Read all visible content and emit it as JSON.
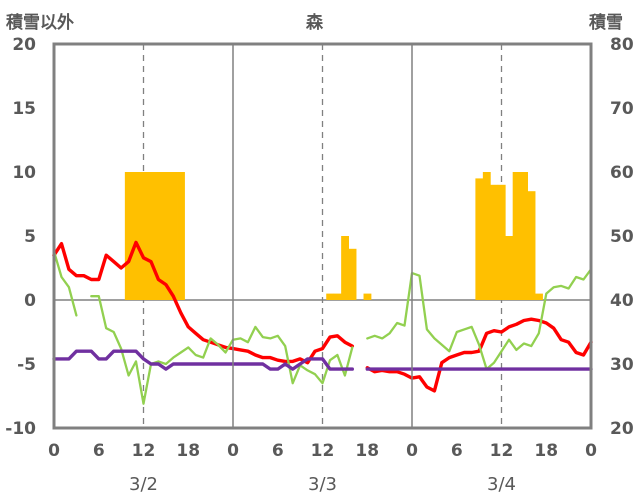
{
  "chart_data": {
    "type": "bar+line",
    "title": "森",
    "left_axis_label": "積雪以外",
    "right_axis_label": "積雪",
    "left_ylim": [
      -10,
      20
    ],
    "left_ticks": [
      "-10",
      "-5",
      "0",
      "5",
      "10",
      "15",
      "20"
    ],
    "right_ylim": [
      20,
      80
    ],
    "right_ticks": [
      "20",
      "30",
      "40",
      "50",
      "60",
      "70",
      "80"
    ],
    "x_range_hours": [
      0,
      72
    ],
    "x_ticks": [
      "0",
      "6",
      "12",
      "18",
      "0",
      "6",
      "12",
      "18",
      "0",
      "6",
      "12",
      "18",
      "0"
    ],
    "day_labels": [
      "3/2",
      "3/3",
      "3/4"
    ],
    "colors": {
      "bars": "#FFC000",
      "red": "#FF0000",
      "green": "#92D050",
      "purple": "#7030A0",
      "frame": "#808080",
      "text": "#595959"
    },
    "bars": [
      {
        "h": 10,
        "v": 60
      },
      {
        "h": 11,
        "v": 60
      },
      {
        "h": 12,
        "v": 60
      },
      {
        "h": 13,
        "v": 60
      },
      {
        "h": 14,
        "v": 60
      },
      {
        "h": 15,
        "v": 60
      },
      {
        "h": 16,
        "v": 60
      },
      {
        "h": 17,
        "v": 60
      },
      {
        "h": 37,
        "v": 41
      },
      {
        "h": 38,
        "v": 41
      },
      {
        "h": 39,
        "v": 50
      },
      {
        "h": 40,
        "v": 48
      },
      {
        "h": 42,
        "v": 41
      },
      {
        "h": 57,
        "v": 59
      },
      {
        "h": 58,
        "v": 60
      },
      {
        "h": 59,
        "v": 58
      },
      {
        "h": 60,
        "v": 58
      },
      {
        "h": 61,
        "v": 50
      },
      {
        "h": 62,
        "v": 60
      },
      {
        "h": 63,
        "v": 60
      },
      {
        "h": 64,
        "v": 57
      },
      {
        "h": 65,
        "v": 41
      }
    ],
    "series": [
      {
        "name": "red",
        "color": "#FF0000",
        "width": 3.4,
        "segments": [
          [
            [
              0,
              3.5
            ],
            [
              1,
              4.4
            ],
            [
              2,
              2.4
            ],
            [
              3,
              1.9
            ],
            [
              4,
              1.9
            ],
            [
              5,
              1.6
            ],
            [
              6,
              1.6
            ],
            [
              7,
              3.5
            ],
            [
              8,
              3.0
            ],
            [
              9,
              2.5
            ],
            [
              10,
              3.0
            ],
            [
              11,
              4.5
            ],
            [
              12,
              3.3
            ],
            [
              13,
              3.0
            ],
            [
              14,
              1.6
            ],
            [
              15,
              1.2
            ],
            [
              16,
              0.3
            ],
            [
              17,
              -1.0
            ],
            [
              18,
              -2.1
            ],
            [
              19,
              -2.6
            ],
            [
              20,
              -3.1
            ],
            [
              21,
              -3.3
            ],
            [
              22,
              -3.5
            ],
            [
              23,
              -3.7
            ],
            [
              24,
              -3.8
            ],
            [
              25,
              -3.9
            ],
            [
              26,
              -4.0
            ],
            [
              27,
              -4.3
            ],
            [
              28,
              -4.5
            ],
            [
              29,
              -4.5
            ],
            [
              30,
              -4.7
            ],
            [
              31,
              -4.8
            ],
            [
              32,
              -4.8
            ],
            [
              33,
              -4.6
            ],
            [
              34,
              -4.9
            ],
            [
              35,
              -4.0
            ],
            [
              36,
              -3.8
            ],
            [
              37,
              -2.9
            ],
            [
              38,
              -2.8
            ],
            [
              39,
              -3.3
            ],
            [
              40,
              -3.6
            ]
          ],
          [
            [
              42,
              -5.3
            ],
            [
              43,
              -5.6
            ],
            [
              44,
              -5.5
            ],
            [
              45,
              -5.6
            ],
            [
              46,
              -5.6
            ],
            [
              47,
              -5.8
            ],
            [
              48,
              -6.1
            ],
            [
              49,
              -6.0
            ],
            [
              50,
              -6.8
            ],
            [
              51,
              -7.1
            ],
            [
              52,
              -4.9
            ],
            [
              53,
              -4.5
            ],
            [
              54,
              -4.3
            ],
            [
              55,
              -4.1
            ],
            [
              56,
              -4.1
            ],
            [
              57,
              -4.0
            ],
            [
              58,
              -2.6
            ],
            [
              59,
              -2.4
            ],
            [
              60,
              -2.5
            ],
            [
              61,
              -2.1
            ],
            [
              62,
              -1.9
            ],
            [
              63,
              -1.6
            ],
            [
              64,
              -1.5
            ],
            [
              65,
              -1.6
            ],
            [
              66,
              -1.8
            ],
            [
              67,
              -2.2
            ],
            [
              68,
              -3.1
            ],
            [
              69,
              -3.3
            ],
            [
              70,
              -4.1
            ],
            [
              71,
              -4.3
            ],
            [
              72,
              -3.3
            ]
          ]
        ]
      },
      {
        "name": "green",
        "color": "#92D050",
        "width": 2.3,
        "segments": [
          [
            [
              0,
              3.8
            ],
            [
              1,
              1.8
            ],
            [
              2,
              1.0
            ],
            [
              3,
              -1.2
            ]
          ],
          [
            [
              5,
              0.3
            ],
            [
              6,
              0.3
            ],
            [
              7,
              -2.2
            ],
            [
              8,
              -2.5
            ],
            [
              9,
              -3.8
            ],
            [
              10,
              -5.9
            ],
            [
              11,
              -4.8
            ],
            [
              12,
              -8.1
            ],
            [
              13,
              -5.0
            ],
            [
              14,
              -4.8
            ],
            [
              15,
              -5.0
            ],
            [
              16,
              -4.5
            ],
            [
              17,
              -4.1
            ],
            [
              18,
              -3.7
            ],
            [
              19,
              -4.3
            ],
            [
              20,
              -4.5
            ],
            [
              21,
              -3.0
            ],
            [
              22,
              -3.5
            ],
            [
              23,
              -4.1
            ],
            [
              24,
              -3.1
            ],
            [
              25,
              -3.0
            ],
            [
              26,
              -3.3
            ],
            [
              27,
              -2.1
            ],
            [
              28,
              -2.9
            ],
            [
              29,
              -3.0
            ],
            [
              30,
              -2.8
            ],
            [
              31,
              -3.6
            ],
            [
              32,
              -6.5
            ],
            [
              33,
              -5.1
            ],
            [
              34,
              -5.5
            ],
            [
              35,
              -5.8
            ],
            [
              36,
              -6.5
            ],
            [
              37,
              -4.7
            ],
            [
              38,
              -4.3
            ],
            [
              39,
              -5.9
            ],
            [
              40,
              -3.7
            ]
          ],
          [
            [
              42,
              -3.0
            ],
            [
              43,
              -2.8
            ],
            [
              44,
              -3.0
            ],
            [
              45,
              -2.6
            ],
            [
              46,
              -1.8
            ],
            [
              47,
              -2.0
            ],
            [
              48,
              2.1
            ],
            [
              49,
              1.9
            ],
            [
              50,
              -2.3
            ],
            [
              51,
              -3.0
            ],
            [
              52,
              -3.5
            ],
            [
              53,
              -4.0
            ],
            [
              54,
              -2.5
            ],
            [
              55,
              -2.3
            ],
            [
              56,
              -2.1
            ],
            [
              57,
              -3.5
            ],
            [
              58,
              -5.4
            ],
            [
              59,
              -4.9
            ],
            [
              60,
              -4.0
            ],
            [
              61,
              -3.1
            ],
            [
              62,
              -3.9
            ],
            [
              63,
              -3.4
            ],
            [
              64,
              -3.6
            ],
            [
              65,
              -2.6
            ],
            [
              66,
              0.5
            ],
            [
              67,
              1.0
            ],
            [
              68,
              1.1
            ],
            [
              69,
              0.9
            ],
            [
              70,
              1.8
            ],
            [
              71,
              1.6
            ],
            [
              72,
              2.4
            ]
          ]
        ]
      },
      {
        "name": "purple",
        "color": "#7030A0",
        "width": 3.4,
        "segments": [
          [
            [
              0,
              -4.6
            ],
            [
              1,
              -4.6
            ],
            [
              2,
              -4.6
            ],
            [
              3,
              -4.0
            ],
            [
              4,
              -4.0
            ],
            [
              5,
              -4.0
            ],
            [
              6,
              -4.6
            ],
            [
              7,
              -4.6
            ],
            [
              8,
              -4.0
            ],
            [
              9,
              -4.0
            ],
            [
              10,
              -4.0
            ],
            [
              11,
              -4.0
            ],
            [
              12,
              -4.6
            ],
            [
              13,
              -5.0
            ],
            [
              14,
              -5.0
            ],
            [
              15,
              -5.4
            ],
            [
              16,
              -5.0
            ],
            [
              17,
              -5.0
            ],
            [
              18,
              -5.0
            ],
            [
              19,
              -5.0
            ],
            [
              20,
              -5.0
            ],
            [
              21,
              -5.0
            ],
            [
              22,
              -5.0
            ],
            [
              23,
              -5.0
            ],
            [
              24,
              -5.0
            ],
            [
              25,
              -5.0
            ],
            [
              26,
              -5.0
            ],
            [
              27,
              -5.0
            ],
            [
              28,
              -5.0
            ],
            [
              29,
              -5.4
            ],
            [
              30,
              -5.4
            ],
            [
              31,
              -5.0
            ],
            [
              32,
              -5.4
            ],
            [
              33,
              -5.0
            ],
            [
              34,
              -4.6
            ],
            [
              35,
              -4.6
            ],
            [
              36,
              -4.6
            ],
            [
              37,
              -5.4
            ],
            [
              38,
              -5.4
            ],
            [
              39,
              -5.4
            ],
            [
              40,
              -5.4
            ]
          ],
          [
            [
              42,
              -5.4
            ],
            [
              43,
              -5.4
            ],
            [
              44,
              -5.4
            ],
            [
              45,
              -5.4
            ],
            [
              46,
              -5.4
            ],
            [
              47,
              -5.4
            ],
            [
              48,
              -5.4
            ],
            [
              49,
              -5.4
            ],
            [
              50,
              -5.4
            ],
            [
              51,
              -5.4
            ],
            [
              52,
              -5.4
            ],
            [
              53,
              -5.4
            ],
            [
              54,
              -5.4
            ],
            [
              55,
              -5.4
            ],
            [
              56,
              -5.4
            ],
            [
              57,
              -5.4
            ],
            [
              58,
              -5.4
            ],
            [
              59,
              -5.4
            ],
            [
              60,
              -5.4
            ],
            [
              61,
              -5.4
            ],
            [
              62,
              -5.4
            ],
            [
              63,
              -5.4
            ],
            [
              64,
              -5.4
            ],
            [
              65,
              -5.4
            ],
            [
              66,
              -5.4
            ],
            [
              67,
              -5.4
            ],
            [
              68,
              -5.4
            ],
            [
              69,
              -5.4
            ],
            [
              70,
              -5.4
            ],
            [
              71,
              -5.4
            ],
            [
              72,
              -5.4
            ]
          ]
        ]
      }
    ]
  }
}
